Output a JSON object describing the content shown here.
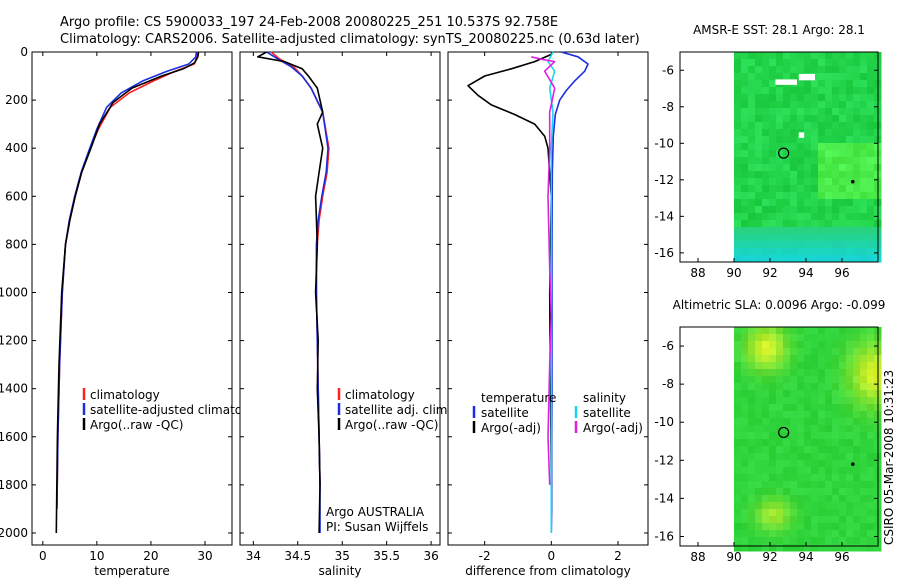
{
  "header": {
    "title_line1": "Argo profile: CS 5900033_197 24-Feb-2008 20080225_251 10.537S 92.758E",
    "title_line2": "Climatology: CARS2006. Satellite-adjusted climatology: synTS_20080225.nc (0.63d later)"
  },
  "side_text": "CSIRO 05-Mar-2008 10:31:23",
  "colors": {
    "climatology": "#ff2020",
    "satellite": "#1a2ee0",
    "argo": "#000000",
    "sat_salinity": "#19d4ee",
    "argo_salinity_adj": "#e020e0"
  },
  "chart_data": [
    {
      "id": "temperature",
      "type": "line",
      "xlabel": "temperature",
      "ylabel": "",
      "xlim": [
        -2,
        35
      ],
      "ylim": [
        2050,
        0
      ],
      "xticks": [
        0,
        10,
        20,
        30
      ],
      "xtick_labels": [
        "0",
        "10",
        "20",
        "30"
      ],
      "yticks": [
        0,
        200,
        400,
        600,
        800,
        1000,
        1200,
        1400,
        1600,
        1800,
        2000
      ],
      "ytick_labels": [
        "0",
        "200",
        "400",
        "600",
        "800",
        "1000",
        "1200",
        "1400",
        "1600",
        "1800",
        "2000"
      ],
      "legend_items": [
        "climatology",
        "satellite-adjusted climatology",
        "Argo(..raw -QC)"
      ],
      "series": [
        {
          "name": "climatology",
          "color": "#ff2020",
          "x": [
            28.6,
            28.5,
            28.0,
            24.5,
            20.5,
            16.0,
            12.5,
            10.3,
            8.8,
            7.2,
            6.0,
            5.0,
            4.2,
            3.6,
            3.1,
            2.8,
            2.6
          ],
          "y": [
            0,
            20,
            50,
            80,
            120,
            170,
            230,
            320,
            400,
            500,
            600,
            700,
            800,
            1000,
            1300,
            1600,
            1900
          ]
        },
        {
          "name": "satellite-adjusted climatology",
          "color": "#1a2ee0",
          "x": [
            28.4,
            28.3,
            27.0,
            23.0,
            18.5,
            14.5,
            11.8,
            10.0,
            8.7,
            7.1,
            5.9,
            4.9,
            4.2,
            3.6,
            3.1,
            2.8,
            2.6
          ],
          "y": [
            0,
            20,
            50,
            80,
            120,
            170,
            230,
            320,
            400,
            500,
            600,
            700,
            800,
            1000,
            1300,
            1600,
            1900
          ]
        },
        {
          "name": "Argo(..raw -QC)",
          "color": "#000000",
          "x": [
            28.8,
            28.7,
            28.1,
            26.0,
            22.0,
            16.5,
            13.0,
            10.5,
            8.9,
            7.2,
            6.0,
            5.0,
            4.2,
            3.5,
            3.0,
            2.7,
            2.5
          ],
          "y": [
            0,
            20,
            45,
            70,
            100,
            150,
            210,
            300,
            400,
            500,
            600,
            700,
            800,
            1000,
            1300,
            1600,
            2000
          ]
        }
      ]
    },
    {
      "id": "salinity",
      "type": "line",
      "xlabel": "salinity",
      "ylabel": "",
      "xlim": [
        33.85,
        36.1
      ],
      "ylim": [
        2050,
        0
      ],
      "xticks": [
        34,
        34.5,
        35,
        35.5,
        36
      ],
      "xtick_labels": [
        "34",
        "34.5",
        "35",
        "35.5",
        "36"
      ],
      "yticks": [
        0,
        200,
        400,
        600,
        800,
        1000,
        1200,
        1400,
        1600,
        1800,
        2000
      ],
      "legend_items": [
        "climatology",
        "satellite adj. clim.",
        "Argo(..raw -QC)"
      ],
      "annotation_line1": "Argo AUSTRALIA",
      "annotation_line2": "PI: Susan Wijffels",
      "series": [
        {
          "name": "climatology",
          "color": "#ff2020",
          "x": [
            34.2,
            34.3,
            34.45,
            34.55,
            34.65,
            34.78,
            34.85,
            34.83,
            34.78,
            34.74,
            34.72,
            34.71,
            34.71,
            34.72,
            34.73,
            34.74,
            34.75
          ],
          "y": [
            0,
            30,
            60,
            100,
            150,
            250,
            400,
            500,
            600,
            700,
            800,
            900,
            1000,
            1200,
            1400,
            1600,
            1800
          ]
        },
        {
          "name": "satellite adj. clim.",
          "color": "#1a2ee0",
          "x": [
            34.15,
            34.28,
            34.42,
            34.55,
            34.65,
            34.78,
            34.84,
            34.82,
            34.77,
            34.73,
            34.71,
            34.71,
            34.71,
            34.72,
            34.73,
            34.74,
            34.75,
            34.75
          ],
          "y": [
            0,
            30,
            60,
            100,
            150,
            250,
            400,
            500,
            600,
            700,
            800,
            900,
            1000,
            1200,
            1400,
            1600,
            1800,
            2000
          ]
        },
        {
          "name": "Argo(..raw -QC)",
          "color": "#000000",
          "x": [
            34.15,
            34.05,
            34.35,
            34.55,
            34.62,
            34.72,
            34.75,
            34.78,
            34.72,
            34.78,
            34.74,
            34.7,
            34.72,
            34.7,
            34.73,
            34.72,
            34.74,
            34.75,
            34.74
          ],
          "y": [
            0,
            20,
            40,
            70,
            100,
            150,
            200,
            250,
            300,
            400,
            500,
            600,
            800,
            1000,
            1200,
            1400,
            1600,
            1800,
            2000
          ]
        }
      ]
    },
    {
      "id": "difference",
      "type": "line",
      "xlabel": "difference from climatology",
      "ylabel": "",
      "xlim": [
        -3.1,
        2.9
      ],
      "ylim": [
        2050,
        0
      ],
      "xticks": [
        -2,
        0,
        2
      ],
      "xtick_labels": [
        "-2",
        "0",
        "2"
      ],
      "yticks": [
        0,
        200,
        400,
        600,
        800,
        1000,
        1200,
        1400,
        1600,
        1800,
        2000
      ],
      "legend_temperature_header": "temperature",
      "legend_salinity_header": "salinity",
      "legend_items": [
        "satellite",
        "Argo(-adj)",
        "satellite",
        "Argo(-adj)"
      ],
      "series": [
        {
          "name": "temperature satellite",
          "color": "#1a2ee0",
          "x": [
            0.3,
            0.8,
            1.1,
            1.0,
            0.7,
            0.45,
            0.25,
            0.12,
            0.06,
            0.03,
            0.02,
            0.02,
            0.02,
            0.01,
            0.01,
            0.0
          ],
          "y": [
            0,
            20,
            50,
            80,
            120,
            160,
            200,
            260,
            350,
            500,
            800,
            1100,
            1400,
            1600,
            1900,
            2000
          ]
        },
        {
          "name": "temperature Argo(-adj)",
          "color": "#000000",
          "x": [
            0.0,
            -0.5,
            -1.2,
            -2.0,
            -2.5,
            -2.2,
            -1.8,
            -1.1,
            -0.5,
            -0.2,
            -0.1,
            0.0,
            -0.05,
            0.0
          ],
          "y": [
            10,
            40,
            70,
            100,
            140,
            180,
            220,
            260,
            300,
            350,
            400,
            600,
            1000,
            1800
          ]
        },
        {
          "name": "salinity satellite",
          "color": "#19d4ee",
          "x": [
            0.05,
            -0.1,
            0.1,
            -0.05,
            0.05,
            0.0,
            0.0,
            0.0,
            0.0,
            0.0,
            0.0
          ],
          "y": [
            0,
            40,
            80,
            150,
            250,
            400,
            700,
            1000,
            1400,
            1800,
            2000
          ]
        },
        {
          "name": "salinity Argo(-adj)",
          "color": "#e020e0",
          "x": [
            -0.6,
            -0.3,
            0.1,
            -0.2,
            0.1,
            -0.05,
            -0.05,
            -0.1,
            -0.05,
            0.0,
            -0.05,
            -0.1,
            -0.05
          ],
          "y": [
            20,
            30,
            40,
            80,
            150,
            250,
            400,
            600,
            900,
            1100,
            1300,
            1600,
            1800
          ]
        }
      ]
    },
    {
      "id": "sst-map",
      "type": "heatmap",
      "title": "AMSR-E SST: 28.1 Argo: 28.1",
      "xlim": [
        87,
        98
      ],
      "ylim": [
        -16.5,
        -5
      ],
      "xticks": [
        88,
        90,
        92,
        94,
        96
      ],
      "xtick_labels": [
        "88",
        "90",
        "92",
        "94",
        "96"
      ],
      "yticks": [
        -6,
        -8,
        -10,
        -12,
        -14,
        -16
      ],
      "ytick_labels": [
        "-6",
        "-8",
        "-10",
        "-12",
        "-14",
        "-16"
      ],
      "float_position": [
        92.758,
        -10.537
      ],
      "track_points": [
        [
          96.6,
          -12.1
        ]
      ]
    },
    {
      "id": "sla-map",
      "type": "heatmap",
      "title": "Altimetric SLA: 0.0096 Argo: -0.099",
      "xlim": [
        87,
        98
      ],
      "ylim": [
        -16.5,
        -5
      ],
      "xticks": [
        88,
        90,
        92,
        94,
        96
      ],
      "xtick_labels": [
        "88",
        "90",
        "92",
        "94",
        "96"
      ],
      "yticks": [
        -6,
        -8,
        -10,
        -12,
        -14,
        -16
      ],
      "ytick_labels": [
        "-6",
        "-8",
        "-10",
        "-12",
        "-14",
        "-16"
      ],
      "float_position": [
        92.758,
        -10.537
      ],
      "track_points": [
        [
          96.6,
          -12.2
        ]
      ]
    }
  ]
}
